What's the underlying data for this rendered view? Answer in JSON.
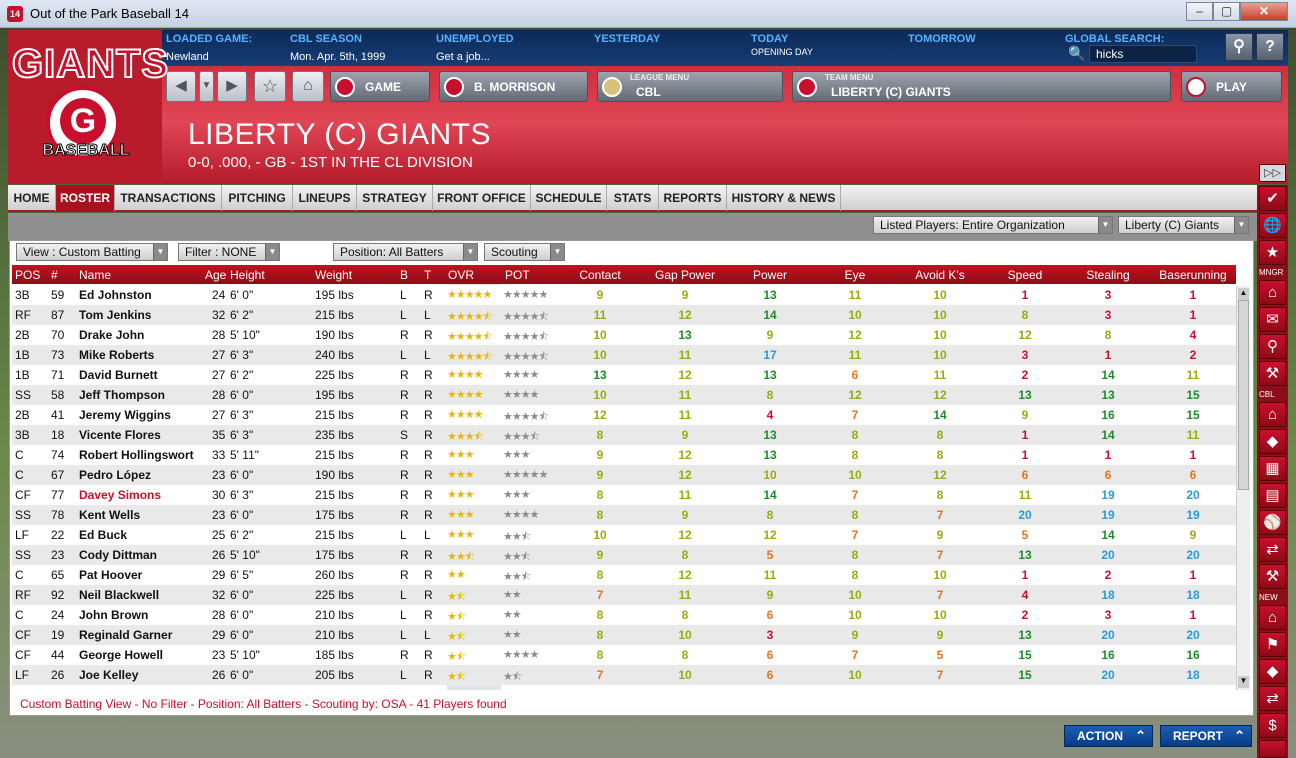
{
  "window": {
    "title": "Out of the Park Baseball 14",
    "icon_text": "14",
    "min": "–",
    "max": "▢",
    "close": "✕"
  },
  "topbar": {
    "loaded_game": {
      "label": "LOADED GAME:",
      "value": "Newland"
    },
    "season": {
      "label": "CBL SEASON",
      "value": "Mon. Apr. 5th, 1999"
    },
    "status": {
      "label": "UNEMPLOYED",
      "value": "Get a job..."
    },
    "yesterday": {
      "label": "YESTERDAY"
    },
    "today": {
      "label": "TODAY",
      "value": "OPENING DAY"
    },
    "tomorrow": {
      "label": "TOMORROW"
    },
    "global_search": {
      "label": "GLOBAL SEARCH:",
      "value": "hicks"
    }
  },
  "navbar": {
    "game_label": "GAME",
    "manager_label": "B. MORRISON",
    "league_menu": {
      "caption": "LEAGUE MENU",
      "value": "CBL"
    },
    "team_menu": {
      "caption": "TEAM MENU",
      "value": "LIBERTY (C) GIANTS"
    },
    "play_label": "PLAY"
  },
  "logo": {
    "text": "GIANTS",
    "letter": "G",
    "sub": "BASEBALL"
  },
  "team": {
    "name": "LIBERTY (C) GIANTS",
    "record": "0-0, .000, - GB - 1ST IN THE CL DIVISION"
  },
  "tabs": [
    "HOME",
    "ROSTER",
    "TRANSACTIONS",
    "PITCHING",
    "LINEUPS",
    "STRATEGY",
    "FRONT OFFICE",
    "SCHEDULE",
    "STATS",
    "REPORTS",
    "HISTORY & NEWS"
  ],
  "active_tab": "ROSTER",
  "filters": {
    "listed_players": "Listed Players: Entire Organization",
    "team": "Liberty (C) Giants",
    "view": "View : Custom Batting",
    "filter": "Filter : NONE",
    "position": "Position: All Batters",
    "scouting": "Scouting"
  },
  "columns": [
    "POS",
    "#",
    "Name",
    "Age",
    "Height",
    "Weight",
    "B",
    "T",
    "OVR",
    "POT",
    "Contact",
    "Gap Power",
    "Power",
    "Eye",
    "Avoid K's",
    "Speed",
    "Stealing",
    "Baserunning"
  ],
  "rating_colors": {
    "1": "#c8102e",
    "2": "#c8102e",
    "3": "#c8102e",
    "4": "#c8102e",
    "5": "#e8731c",
    "6": "#e8731c",
    "7": "#e8731c",
    "8": "#9aaa12",
    "9": "#9aaa12",
    "10": "#9aaa12",
    "11": "#9aaa12",
    "12": "#9aaa12",
    "13": "#1e8c2a",
    "14": "#1e8c2a",
    "15": "#1e8c2a",
    "16": "#1e8c2a",
    "17": "#2a9ad6",
    "18": "#2a9ad6",
    "19": "#2a9ad6",
    "20": "#2a9ad6"
  },
  "players": [
    {
      "pos": "3B",
      "num": "59",
      "name": "Ed Johnston",
      "age": "24",
      "height": "6' 0\"",
      "weight": "195 lbs",
      "b": "L",
      "t": "R",
      "ovr": 5,
      "pot": 5,
      "r": [
        "9",
        "9",
        "13",
        "11",
        "10",
        "1",
        "3",
        "1"
      ]
    },
    {
      "pos": "RF",
      "num": "87",
      "name": "Tom Jenkins",
      "age": "32",
      "height": "6' 2\"",
      "weight": "215 lbs",
      "b": "L",
      "t": "L",
      "ovr": 4.5,
      "pot": 4.5,
      "r": [
        "11",
        "12",
        "14",
        "10",
        "10",
        "8",
        "3",
        "1"
      ]
    },
    {
      "pos": "2B",
      "num": "70",
      "name": "Drake John",
      "age": "28",
      "height": "5' 10\"",
      "weight": "190 lbs",
      "b": "R",
      "t": "R",
      "ovr": 4.5,
      "pot": 4.5,
      "r": [
        "10",
        "13",
        "9",
        "12",
        "10",
        "12",
        "8",
        "4"
      ]
    },
    {
      "pos": "1B",
      "num": "73",
      "name": "Mike Roberts",
      "age": "27",
      "height": "6' 3\"",
      "weight": "240 lbs",
      "b": "L",
      "t": "L",
      "ovr": 4.5,
      "pot": 4.5,
      "r": [
        "10",
        "11",
        "17",
        "11",
        "10",
        "3",
        "1",
        "2"
      ]
    },
    {
      "pos": "1B",
      "num": "71",
      "name": "David Burnett",
      "age": "27",
      "height": "6' 2\"",
      "weight": "225 lbs",
      "b": "R",
      "t": "R",
      "ovr": 4,
      "pot": 4,
      "r": [
        "13",
        "12",
        "13",
        "6",
        "11",
        "2",
        "14",
        "11"
      ]
    },
    {
      "pos": "SS",
      "num": "58",
      "name": "Jeff Thompson",
      "age": "28",
      "height": "6' 0\"",
      "weight": "195 lbs",
      "b": "R",
      "t": "R",
      "ovr": 4,
      "pot": 4,
      "r": [
        "10",
        "11",
        "8",
        "12",
        "12",
        "13",
        "13",
        "15"
      ]
    },
    {
      "pos": "2B",
      "num": "41",
      "name": "Jeremy Wiggins",
      "age": "27",
      "height": "6' 3\"",
      "weight": "215 lbs",
      "b": "R",
      "t": "R",
      "ovr": 4,
      "pot": 4.5,
      "r": [
        "12",
        "11",
        "4",
        "7",
        "14",
        "9",
        "16",
        "15"
      ]
    },
    {
      "pos": "3B",
      "num": "18",
      "name": "Vicente Flores",
      "age": "35",
      "height": "6' 3\"",
      "weight": "235 lbs",
      "b": "S",
      "t": "R",
      "ovr": 3.5,
      "pot": 3.5,
      "r": [
        "8",
        "9",
        "13",
        "8",
        "8",
        "1",
        "14",
        "11"
      ]
    },
    {
      "pos": "C",
      "num": "74",
      "name": "Robert Hollingswort",
      "age": "33",
      "height": "5' 11\"",
      "weight": "215 lbs",
      "b": "R",
      "t": "R",
      "ovr": 3,
      "pot": 3,
      "r": [
        "9",
        "12",
        "13",
        "8",
        "8",
        "1",
        "1",
        "1"
      ]
    },
    {
      "pos": "C",
      "num": "67",
      "name": "Pedro López",
      "age": "23",
      "height": "6' 0\"",
      "weight": "190 lbs",
      "b": "R",
      "t": "R",
      "ovr": 3,
      "pot": 5,
      "r": [
        "9",
        "12",
        "10",
        "10",
        "12",
        "6",
        "6",
        "6"
      ]
    },
    {
      "pos": "CF",
      "num": "77",
      "name": "Davey Simons",
      "age": "30",
      "height": "6' 3\"",
      "weight": "215 lbs",
      "b": "R",
      "t": "R",
      "ovr": 3,
      "pot": 3,
      "r": [
        "8",
        "11",
        "14",
        "7",
        "8",
        "11",
        "19",
        "20"
      ],
      "highlight": true
    },
    {
      "pos": "SS",
      "num": "78",
      "name": "Kent Wells",
      "age": "23",
      "height": "6' 0\"",
      "weight": "175 lbs",
      "b": "R",
      "t": "R",
      "ovr": 3,
      "pot": 4,
      "r": [
        "8",
        "9",
        "8",
        "8",
        "7",
        "20",
        "19",
        "19"
      ]
    },
    {
      "pos": "LF",
      "num": "22",
      "name": "Ed Buck",
      "age": "25",
      "height": "6' 2\"",
      "weight": "215 lbs",
      "b": "L",
      "t": "L",
      "ovr": 3,
      "pot": 2.5,
      "r": [
        "10",
        "12",
        "12",
        "7",
        "9",
        "5",
        "14",
        "9"
      ]
    },
    {
      "pos": "SS",
      "num": "23",
      "name": "Cody Dittman",
      "age": "26",
      "height": "5' 10\"",
      "weight": "175 lbs",
      "b": "R",
      "t": "R",
      "ovr": 2.5,
      "pot": 2.5,
      "r": [
        "9",
        "8",
        "5",
        "8",
        "7",
        "13",
        "20",
        "20"
      ]
    },
    {
      "pos": "C",
      "num": "65",
      "name": "Pat Hoover",
      "age": "29",
      "height": "6' 5\"",
      "weight": "260 lbs",
      "b": "R",
      "t": "R",
      "ovr": 2,
      "pot": 2.5,
      "r": [
        "8",
        "12",
        "11",
        "8",
        "10",
        "1",
        "2",
        "1"
      ]
    },
    {
      "pos": "RF",
      "num": "92",
      "name": "Neil Blackwell",
      "age": "32",
      "height": "6' 0\"",
      "weight": "225 lbs",
      "b": "L",
      "t": "R",
      "ovr": 1.5,
      "pot": 2,
      "r": [
        "7",
        "11",
        "9",
        "10",
        "7",
        "4",
        "18",
        "18"
      ]
    },
    {
      "pos": "C",
      "num": "24",
      "name": "John Brown",
      "age": "28",
      "height": "6' 0\"",
      "weight": "210 lbs",
      "b": "L",
      "t": "R",
      "ovr": 1.5,
      "pot": 2,
      "r": [
        "8",
        "8",
        "6",
        "10",
        "10",
        "2",
        "3",
        "1"
      ]
    },
    {
      "pos": "CF",
      "num": "19",
      "name": "Reginald Garner",
      "age": "29",
      "height": "6' 0\"",
      "weight": "210 lbs",
      "b": "L",
      "t": "L",
      "ovr": 1.5,
      "pot": 2,
      "r": [
        "8",
        "10",
        "3",
        "9",
        "9",
        "13",
        "20",
        "20"
      ]
    },
    {
      "pos": "CF",
      "num": "44",
      "name": "George Howell",
      "age": "23",
      "height": "5' 10\"",
      "weight": "185 lbs",
      "b": "R",
      "t": "R",
      "ovr": 1.5,
      "pot": 4,
      "r": [
        "8",
        "8",
        "6",
        "7",
        "5",
        "15",
        "16",
        "16"
      ]
    },
    {
      "pos": "LF",
      "num": "26",
      "name": "Joe Kelley",
      "age": "26",
      "height": "6' 0\"",
      "weight": "205 lbs",
      "b": "L",
      "t": "R",
      "ovr": 1.5,
      "pot": 1.5,
      "r": [
        "7",
        "10",
        "6",
        "10",
        "7",
        "15",
        "20",
        "18"
      ]
    }
  ],
  "status_text": "Custom Batting View - No Filter - Position: All Batters - Scouting by: OSA - 41 Players found",
  "sidebar": {
    "mngr": "MNGR",
    "cbl": "CBL",
    "new": "NEW"
  },
  "bottom": {
    "action": "ACTION",
    "report": "REPORT"
  }
}
